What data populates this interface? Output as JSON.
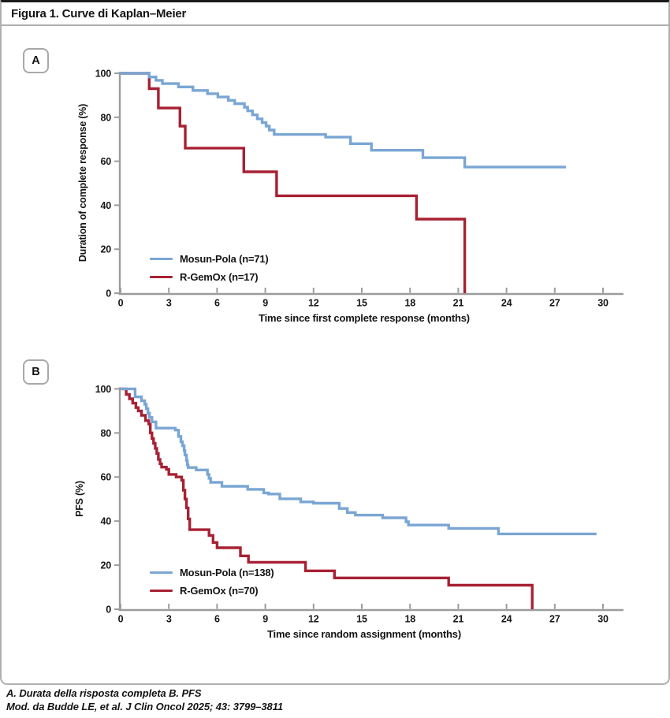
{
  "figure": {
    "title": "Figura 1. Curve di Kaplan–Meier"
  },
  "footer": {
    "a_label": "A.",
    "a_text": " Durata della risposta completa ",
    "b_label": "B.",
    "b_text": " PFS",
    "line2": "Mod. da Budde LE, et al. J Clin Oncol 2025; 43: 3799–3811"
  },
  "chart_data": [
    {
      "panel": "A",
      "type": "line",
      "subtype": "kaplan-meier-step",
      "xlabel": "Time since first complete response (months)",
      "ylabel": "Duration of complete response (%)",
      "xlim": [
        0,
        31
      ],
      "ylim": [
        0,
        100
      ],
      "xticks": [
        0,
        3,
        6,
        9,
        12,
        15,
        18,
        21,
        24,
        27,
        30
      ],
      "yticks": [
        0,
        20,
        40,
        60,
        80,
        100
      ],
      "grid": false,
      "legend_position": "lower-left",
      "series": [
        {
          "name": "Mosun-Pola (n=71)",
          "color": "#7aa6d4",
          "steps": [
            [
              0,
              100
            ],
            [
              1.78,
              98.3
            ],
            [
              2.2,
              96.8
            ],
            [
              2.6,
              95.3
            ],
            [
              3.6,
              93.8
            ],
            [
              4.5,
              92.2
            ],
            [
              5.4,
              90.7
            ],
            [
              6.05,
              89.2
            ],
            [
              6.7,
              87.7
            ],
            [
              7.1,
              86.2
            ],
            [
              7.7,
              84.6
            ],
            [
              7.9,
              82.9
            ],
            [
              8.2,
              81.1
            ],
            [
              8.5,
              79.3
            ],
            [
              8.8,
              77.6
            ],
            [
              9.05,
              76.0
            ],
            [
              9.25,
              74.2
            ],
            [
              9.55,
              72.2
            ],
            [
              12.75,
              71.0
            ],
            [
              14.3,
              68.0
            ],
            [
              15.6,
              65.0
            ],
            [
              18.8,
              61.6
            ],
            [
              21.4,
              57.4
            ]
          ],
          "end": 27.7,
          "drop_to_zero": false
        },
        {
          "name": "R-GemOx (n=17)",
          "color": "#a72133",
          "steps": [
            [
              0,
              100
            ],
            [
              1.78,
              93.0
            ],
            [
              2.35,
              84.2
            ],
            [
              3.69,
              76.0
            ],
            [
              4.02,
              66.0
            ],
            [
              7.66,
              55.2
            ],
            [
              9.7,
              44.3
            ],
            [
              18.4,
              33.7
            ]
          ],
          "end": 21.4,
          "drop_to_zero": true
        }
      ]
    },
    {
      "panel": "B",
      "type": "line",
      "subtype": "kaplan-meier-step",
      "xlabel": "Time since random assignment (months)",
      "ylabel": "PFS (%)",
      "xlim": [
        0,
        31
      ],
      "ylim": [
        0,
        100
      ],
      "xticks": [
        0,
        3,
        6,
        9,
        12,
        15,
        18,
        21,
        24,
        27,
        30
      ],
      "yticks": [
        0,
        20,
        40,
        60,
        80,
        100
      ],
      "grid": false,
      "legend_position": "lower-left",
      "series": [
        {
          "name": "Mosun-Pola (n=138)",
          "color": "#7aa6d4",
          "steps": [
            [
              0,
              100
            ],
            [
              0.9,
              96.4
            ],
            [
              1.3,
              94.6
            ],
            [
              1.5,
              93.0
            ],
            [
              1.6,
              91.0
            ],
            [
              1.7,
              89.0
            ],
            [
              1.8,
              87.0
            ],
            [
              1.95,
              85.0
            ],
            [
              2.2,
              82.2
            ],
            [
              3.4,
              81.3
            ],
            [
              3.6,
              78.4
            ],
            [
              3.75,
              76.0
            ],
            [
              3.85,
              74.2
            ],
            [
              3.95,
              72.0
            ],
            [
              4.0,
              70.0
            ],
            [
              4.1,
              67.5
            ],
            [
              4.15,
              65.4
            ],
            [
              4.2,
              64.3
            ],
            [
              4.7,
              63.2
            ],
            [
              5.4,
              61.2
            ],
            [
              5.5,
              59.4
            ],
            [
              5.6,
              57.6
            ],
            [
              6.3,
              55.8
            ],
            [
              7.9,
              54.4
            ],
            [
              8.9,
              52.8
            ],
            [
              9.2,
              52.3
            ],
            [
              9.9,
              50.1
            ],
            [
              11.2,
              48.7
            ],
            [
              12.0,
              48.1
            ],
            [
              13.6,
              45.7
            ],
            [
              14.1,
              43.9
            ],
            [
              14.6,
              42.7
            ],
            [
              16.3,
              41.5
            ],
            [
              17.75,
              39.7
            ],
            [
              17.9,
              38.2
            ],
            [
              20.4,
              36.7
            ],
            [
              23.5,
              34.2
            ]
          ],
          "end": 29.6,
          "drop_to_zero": false
        },
        {
          "name": "R-GemOx (n=70)",
          "color": "#a72133",
          "steps": [
            [
              0,
              100
            ],
            [
              0.35,
              97.5
            ],
            [
              0.55,
              95.5
            ],
            [
              0.75,
              93.5
            ],
            [
              0.95,
              91.5
            ],
            [
              1.1,
              90.0
            ],
            [
              1.3,
              88.0
            ],
            [
              1.55,
              85.6
            ],
            [
              1.75,
              84.0
            ],
            [
              1.85,
              80.0
            ],
            [
              1.95,
              77.5
            ],
            [
              2.05,
              75.3
            ],
            [
              2.15,
              73.0
            ],
            [
              2.25,
              70.7
            ],
            [
              2.35,
              68.0
            ],
            [
              2.45,
              66.0
            ],
            [
              2.55,
              64.5
            ],
            [
              2.85,
              63.5
            ],
            [
              3.0,
              61.2
            ],
            [
              3.45,
              60.0
            ],
            [
              3.8,
              58.5
            ],
            [
              3.9,
              54.0
            ],
            [
              4.0,
              50.0
            ],
            [
              4.1,
              46.0
            ],
            [
              4.2,
              41.0
            ],
            [
              4.3,
              36.1
            ],
            [
              5.5,
              33.5
            ],
            [
              5.75,
              30.3
            ],
            [
              6.0,
              27.9
            ],
            [
              7.45,
              24.2
            ],
            [
              7.95,
              21.3
            ],
            [
              11.5,
              17.4
            ],
            [
              13.3,
              14.2
            ],
            [
              20.4,
              10.9
            ]
          ],
          "end": 25.6,
          "drop_to_zero": true
        }
      ]
    }
  ]
}
